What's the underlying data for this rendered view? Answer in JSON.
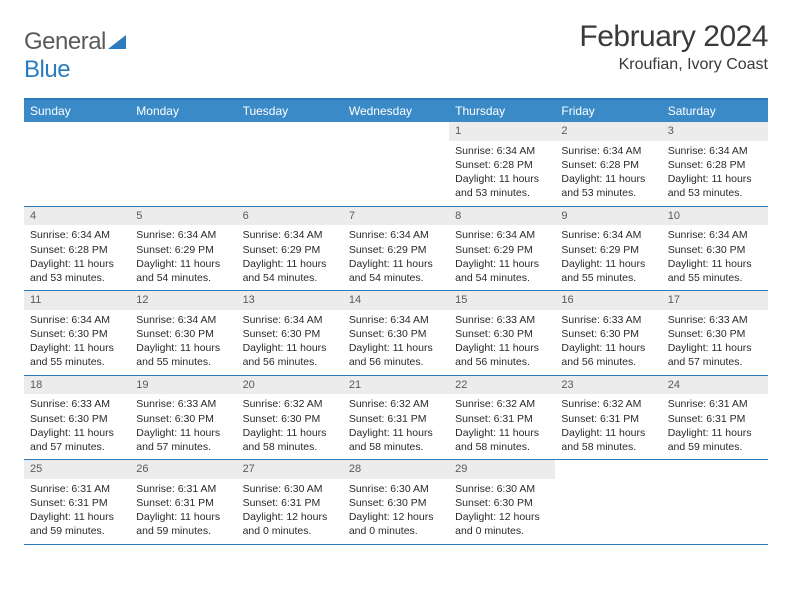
{
  "brand": {
    "part1": "General",
    "part2": "Blue"
  },
  "title": "February 2024",
  "location": "Kroufian, Ivory Coast",
  "colors": {
    "headerBg": "#3a8ac8",
    "borderBlue": "#2b7bbf",
    "dayNumBg": "#ececec",
    "textDark": "#2a2a2a",
    "textMuted": "#5a5a5a"
  },
  "dayNames": [
    "Sunday",
    "Monday",
    "Tuesday",
    "Wednesday",
    "Thursday",
    "Friday",
    "Saturday"
  ],
  "weeks": [
    [
      null,
      null,
      null,
      null,
      {
        "n": "1",
        "sr": "6:34 AM",
        "ss": "6:28 PM",
        "dl": "11 hours and 53 minutes."
      },
      {
        "n": "2",
        "sr": "6:34 AM",
        "ss": "6:28 PM",
        "dl": "11 hours and 53 minutes."
      },
      {
        "n": "3",
        "sr": "6:34 AM",
        "ss": "6:28 PM",
        "dl": "11 hours and 53 minutes."
      }
    ],
    [
      {
        "n": "4",
        "sr": "6:34 AM",
        "ss": "6:28 PM",
        "dl": "11 hours and 53 minutes."
      },
      {
        "n": "5",
        "sr": "6:34 AM",
        "ss": "6:29 PM",
        "dl": "11 hours and 54 minutes."
      },
      {
        "n": "6",
        "sr": "6:34 AM",
        "ss": "6:29 PM",
        "dl": "11 hours and 54 minutes."
      },
      {
        "n": "7",
        "sr": "6:34 AM",
        "ss": "6:29 PM",
        "dl": "11 hours and 54 minutes."
      },
      {
        "n": "8",
        "sr": "6:34 AM",
        "ss": "6:29 PM",
        "dl": "11 hours and 54 minutes."
      },
      {
        "n": "9",
        "sr": "6:34 AM",
        "ss": "6:29 PM",
        "dl": "11 hours and 55 minutes."
      },
      {
        "n": "10",
        "sr": "6:34 AM",
        "ss": "6:30 PM",
        "dl": "11 hours and 55 minutes."
      }
    ],
    [
      {
        "n": "11",
        "sr": "6:34 AM",
        "ss": "6:30 PM",
        "dl": "11 hours and 55 minutes."
      },
      {
        "n": "12",
        "sr": "6:34 AM",
        "ss": "6:30 PM",
        "dl": "11 hours and 55 minutes."
      },
      {
        "n": "13",
        "sr": "6:34 AM",
        "ss": "6:30 PM",
        "dl": "11 hours and 56 minutes."
      },
      {
        "n": "14",
        "sr": "6:34 AM",
        "ss": "6:30 PM",
        "dl": "11 hours and 56 minutes."
      },
      {
        "n": "15",
        "sr": "6:33 AM",
        "ss": "6:30 PM",
        "dl": "11 hours and 56 minutes."
      },
      {
        "n": "16",
        "sr": "6:33 AM",
        "ss": "6:30 PM",
        "dl": "11 hours and 56 minutes."
      },
      {
        "n": "17",
        "sr": "6:33 AM",
        "ss": "6:30 PM",
        "dl": "11 hours and 57 minutes."
      }
    ],
    [
      {
        "n": "18",
        "sr": "6:33 AM",
        "ss": "6:30 PM",
        "dl": "11 hours and 57 minutes."
      },
      {
        "n": "19",
        "sr": "6:33 AM",
        "ss": "6:30 PM",
        "dl": "11 hours and 57 minutes."
      },
      {
        "n": "20",
        "sr": "6:32 AM",
        "ss": "6:30 PM",
        "dl": "11 hours and 58 minutes."
      },
      {
        "n": "21",
        "sr": "6:32 AM",
        "ss": "6:31 PM",
        "dl": "11 hours and 58 minutes."
      },
      {
        "n": "22",
        "sr": "6:32 AM",
        "ss": "6:31 PM",
        "dl": "11 hours and 58 minutes."
      },
      {
        "n": "23",
        "sr": "6:32 AM",
        "ss": "6:31 PM",
        "dl": "11 hours and 58 minutes."
      },
      {
        "n": "24",
        "sr": "6:31 AM",
        "ss": "6:31 PM",
        "dl": "11 hours and 59 minutes."
      }
    ],
    [
      {
        "n": "25",
        "sr": "6:31 AM",
        "ss": "6:31 PM",
        "dl": "11 hours and 59 minutes."
      },
      {
        "n": "26",
        "sr": "6:31 AM",
        "ss": "6:31 PM",
        "dl": "11 hours and 59 minutes."
      },
      {
        "n": "27",
        "sr": "6:30 AM",
        "ss": "6:31 PM",
        "dl": "12 hours and 0 minutes."
      },
      {
        "n": "28",
        "sr": "6:30 AM",
        "ss": "6:30 PM",
        "dl": "12 hours and 0 minutes."
      },
      {
        "n": "29",
        "sr": "6:30 AM",
        "ss": "6:30 PM",
        "dl": "12 hours and 0 minutes."
      },
      null,
      null
    ]
  ],
  "labels": {
    "sunrise": "Sunrise:",
    "sunset": "Sunset:",
    "daylight": "Daylight:"
  }
}
